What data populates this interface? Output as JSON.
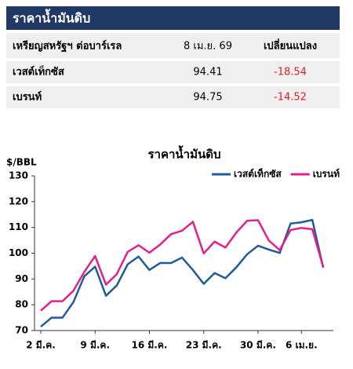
{
  "table": {
    "title": "ราคาน้ำมันดิบ",
    "header": [
      "เหรียญสหรัฐฯ ต่อบาร์เรล",
      "8 เม.ย. 69",
      "เปลี่ยนแปลง"
    ],
    "rows": [
      [
        "เวสต์เท็กซัส",
        "94.41",
        "-18.54"
      ],
      [
        "เบรนท์",
        "94.75",
        "-14.52"
      ]
    ]
  },
  "chart_data": {
    "type": "line",
    "title": "ราคาน้ำมันดิบ",
    "y_label": "$/BBL",
    "categories": [
      "2 มี.ค.",
      null,
      null,
      null,
      null,
      "9 มี.ค.",
      null,
      null,
      null,
      null,
      "16 มี.ค.",
      null,
      null,
      null,
      null,
      "23 มี.ค.",
      null,
      null,
      null,
      null,
      "30 มี.ค.",
      null,
      null,
      null,
      "6 เม.ย.",
      null,
      null
    ],
    "series": [
      {
        "name": "เวสต์เท็กซัส",
        "color": "#1f5c99",
        "values": [
          71.5,
          75,
          75,
          81,
          91,
          94.8,
          83.5,
          87.5,
          95.7,
          98.7,
          93.5,
          96.2,
          96.2,
          98.3,
          93.5,
          88.1,
          92.3,
          90.3,
          94.5,
          99.6,
          102.9,
          101.4,
          100.1,
          111.5,
          112,
          112.9,
          94.41
        ]
      },
      {
        "name": "เบรนท์",
        "color": "#e0218a",
        "values": [
          77.7,
          81.4,
          81.4,
          85.4,
          92.7,
          98.9,
          87.8,
          91.9,
          100.5,
          103.1,
          100.2,
          103.4,
          107.4,
          108.7,
          112.2,
          99.9,
          104.5,
          102.2,
          108,
          112.6,
          112.8,
          104.9,
          101.2,
          109,
          109.8,
          109.3,
          94.75
        ]
      }
    ],
    "ylim": [
      70,
      130
    ],
    "yticks": [
      70,
      80,
      90,
      100,
      110,
      120,
      130
    ],
    "grid": false,
    "legend": "top-right"
  }
}
